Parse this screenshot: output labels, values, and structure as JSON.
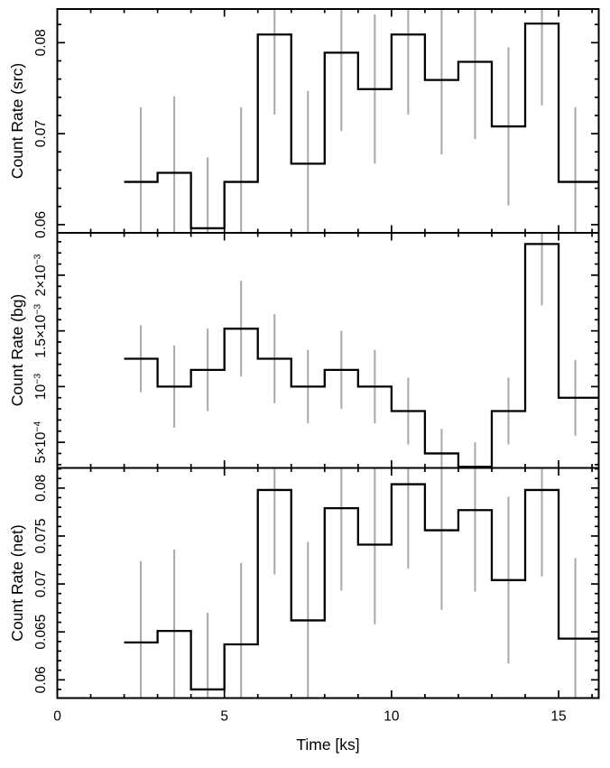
{
  "figure": {
    "background": "#ffffff",
    "line_color": "#000000",
    "frame_color": "#000000",
    "error_color": "#a8a8a8"
  },
  "chart_data": {
    "type": "step-errorbar-multipanel",
    "xlabel": "Time [ks]",
    "xlim": [
      0,
      16.2
    ],
    "x_minor_step": 1,
    "xticks_major": [
      0,
      5,
      10,
      15
    ],
    "xtick_labels": [
      "0",
      "5",
      "10",
      "15"
    ],
    "x_bin_edges": [
      2,
      3,
      4,
      5,
      6,
      7,
      8,
      9,
      10,
      11,
      12,
      13,
      14,
      15,
      16.2
    ],
    "x_centers": [
      2.5,
      3.5,
      4.5,
      5.5,
      6.5,
      7.5,
      8.5,
      9.5,
      10.5,
      11.5,
      12.5,
      13.5,
      14.5,
      15.5
    ],
    "panels": [
      {
        "id": "src",
        "ylabel": "Count Rate (src)",
        "ylim": [
          0.0591,
          0.0837
        ],
        "y_minor_step": 0.002,
        "yticks": [
          {
            "value": 0.06,
            "label": "0.06"
          },
          {
            "value": 0.07,
            "label": "0.07"
          },
          {
            "value": 0.08,
            "label": "0.08"
          }
        ],
        "values": [
          0.0647,
          0.0657,
          0.0596,
          0.0647,
          0.0809,
          0.0667,
          0.0789,
          0.0749,
          0.0809,
          0.0759,
          0.0779,
          0.0708,
          0.0821,
          0.0647
        ],
        "errors": [
          0.0082,
          0.0084,
          0.0078,
          0.0082,
          0.0088,
          0.008,
          0.0086,
          0.0082,
          0.0088,
          0.0082,
          0.0085,
          0.0087,
          0.009,
          0.0082
        ]
      },
      {
        "id": "bg",
        "ylabel": "Count Rate (bg)",
        "ylim": [
          0.00027,
          0.00238
        ],
        "y_minor_step": 0.0001,
        "yticks": [
          {
            "value": 0.0005,
            "label": "5×10^−4"
          },
          {
            "value": 0.001,
            "label": "10^−3"
          },
          {
            "value": 0.0015,
            "label": "1.5×10^−3"
          },
          {
            "value": 0.002,
            "label": "2×10^−3"
          }
        ],
        "values": [
          0.00125,
          0.001,
          0.00115,
          0.00152,
          0.00125,
          0.001,
          0.00115,
          0.001,
          0.00078,
          0.0004,
          0.00028,
          0.00078,
          0.00228,
          0.0009
        ],
        "errors": [
          0.0003,
          0.00037,
          0.00037,
          0.00043,
          0.0004,
          0.00033,
          0.00035,
          0.00033,
          0.0003,
          0.00022,
          0.00022,
          0.0003,
          0.00055,
          0.00034
        ]
      },
      {
        "id": "net",
        "ylabel": "Count Rate (net)",
        "ylim": [
          0.0581,
          0.0821
        ],
        "y_minor_step": 0.001,
        "yticks": [
          {
            "value": 0.06,
            "label": "0.06"
          },
          {
            "value": 0.065,
            "label": "0.065"
          },
          {
            "value": 0.07,
            "label": "0.07"
          },
          {
            "value": 0.075,
            "label": "0.075"
          },
          {
            "value": 0.08,
            "label": "0.08"
          }
        ],
        "values": [
          0.0639,
          0.0651,
          0.059,
          0.0637,
          0.0798,
          0.0662,
          0.0779,
          0.0741,
          0.0804,
          0.0756,
          0.0777,
          0.0704,
          0.0798,
          0.0643
        ],
        "errors": [
          0.0085,
          0.0085,
          0.008,
          0.0085,
          0.0088,
          0.0082,
          0.0086,
          0.0083,
          0.0088,
          0.0083,
          0.0085,
          0.0087,
          0.009,
          0.0084
        ]
      }
    ]
  }
}
